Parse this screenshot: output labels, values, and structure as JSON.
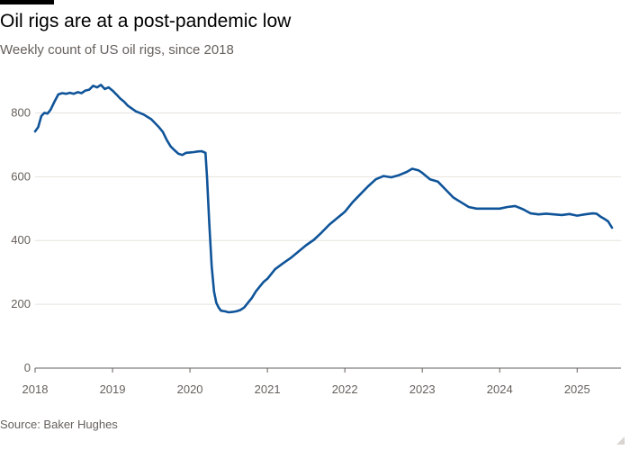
{
  "header": {
    "title": "Oil rigs are at a post-pandemic low",
    "subtitle": "Weekly count of US oil rigs, since 2018"
  },
  "footer": {
    "source": "Source: Baker Hughes"
  },
  "colors": {
    "line": "#0f5499",
    "grid": "#e6e3df",
    "axis": "#66605c"
  },
  "chart_data": {
    "type": "line",
    "title": "Oil rigs are at a post-pandemic low",
    "subtitle": "Weekly count of US oil rigs, since 2018",
    "xlabel": "",
    "ylabel": "",
    "xlim": [
      2018,
      2025.45
    ],
    "ylim": [
      0,
      900
    ],
    "yticks": [
      0,
      200,
      400,
      600,
      800
    ],
    "xticks": [
      "2018",
      "2019",
      "2020",
      "2021",
      "2022",
      "2023",
      "2024",
      "2025"
    ],
    "grid": "horizontal",
    "legend": "none",
    "series": [
      {
        "x": [
          2018.0,
          2018.04,
          2018.08,
          2018.12,
          2018.16,
          2018.2,
          2018.25,
          2018.3,
          2018.35,
          2018.4,
          2018.45,
          2018.5,
          2018.55,
          2018.6,
          2018.65,
          2018.7,
          2018.75,
          2018.8,
          2018.85,
          2018.9,
          2018.95,
          2019.0,
          2019.05,
          2019.1,
          2019.15,
          2019.2,
          2019.3,
          2019.4,
          2019.5,
          2019.6,
          2019.65,
          2019.7,
          2019.75,
          2019.8,
          2019.85,
          2019.9,
          2019.95,
          2020.0,
          2020.05,
          2020.1,
          2020.15,
          2020.2,
          2020.22,
          2020.25,
          2020.28,
          2020.31,
          2020.34,
          2020.37,
          2020.4,
          2020.45,
          2020.5,
          2020.55,
          2020.6,
          2020.65,
          2020.7,
          2020.75,
          2020.8,
          2020.85,
          2020.9,
          2020.95,
          2021.0,
          2021.1,
          2021.2,
          2021.3,
          2021.4,
          2021.5,
          2021.6,
          2021.7,
          2021.8,
          2021.9,
          2022.0,
          2022.1,
          2022.2,
          2022.3,
          2022.4,
          2022.5,
          2022.6,
          2022.7,
          2022.8,
          2022.87,
          2022.95,
          2023.0,
          2023.1,
          2023.2,
          2023.3,
          2023.4,
          2023.5,
          2023.6,
          2023.7,
          2023.8,
          2023.9,
          2024.0,
          2024.1,
          2024.2,
          2024.3,
          2024.4,
          2024.5,
          2024.6,
          2024.7,
          2024.8,
          2024.9,
          2025.0,
          2025.1,
          2025.2,
          2025.25,
          2025.3,
          2025.35,
          2025.4,
          2025.45
        ],
        "y": [
          742,
          755,
          790,
          800,
          798,
          810,
          835,
          858,
          862,
          860,
          863,
          860,
          865,
          862,
          870,
          873,
          885,
          880,
          888,
          875,
          880,
          870,
          858,
          845,
          835,
          822,
          805,
          795,
          780,
          755,
          740,
          715,
          695,
          683,
          672,
          668,
          675,
          676,
          677,
          679,
          680,
          675,
          600,
          450,
          320,
          240,
          205,
          190,
          180,
          178,
          175,
          176,
          178,
          182,
          190,
          205,
          220,
          240,
          255,
          270,
          280,
          310,
          328,
          345,
          365,
          385,
          402,
          425,
          450,
          470,
          490,
          520,
          545,
          570,
          592,
          602,
          598,
          605,
          615,
          625,
          620,
          612,
          592,
          585,
          560,
          535,
          520,
          505,
          500,
          500,
          500,
          500,
          505,
          508,
          498,
          485,
          482,
          484,
          482,
          480,
          483,
          478,
          482,
          485,
          484,
          475,
          468,
          460,
          440
        ]
      }
    ]
  }
}
